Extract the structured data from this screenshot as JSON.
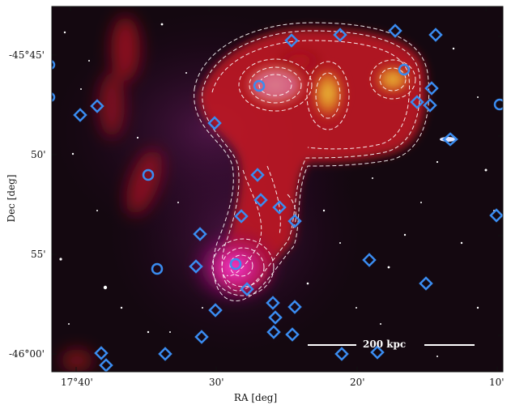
{
  "figure": {
    "y_axis_title": "Dec [deg]",
    "x_axis_title": "RA [deg]",
    "y_ticks": [
      "-45°45'",
      "50'",
      "55'",
      "-46°00'"
    ],
    "x_ticks": [
      "17°40'",
      "30'",
      "20'",
      "10'"
    ],
    "scalebar_label": "200 kpc",
    "colors": {
      "background": "#000000",
      "emission_red": "#d01820",
      "emission_yellow": "#e8c840",
      "xray_magenta": "#ff30c0",
      "markers": "#3a8cf0",
      "contours": "#ffffff"
    },
    "marker_types": [
      "circle",
      "diamond"
    ],
    "overlay_note": ""
  }
}
